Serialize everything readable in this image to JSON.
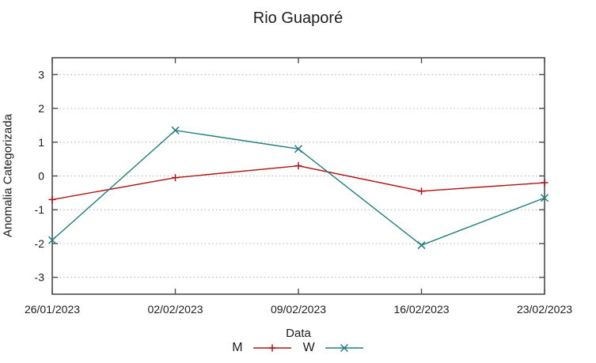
{
  "title": "Rio Guaporé",
  "colors": {
    "series_m": "#b01414",
    "series_w": "#1f7d7d",
    "grid": "#bdbdbd",
    "border": "#4d4d4d",
    "text": "#1c1c1c",
    "background": "#ffffff"
  },
  "chart_data": {
    "type": "line",
    "title": "Rio Guaporé",
    "xlabel": "Data",
    "ylabel": "Anomalia Categorizada",
    "categories": [
      "26/01/2023",
      "02/02/2023",
      "09/02/2023",
      "16/02/2023",
      "23/02/2023"
    ],
    "series": [
      {
        "name": "M",
        "color": "#b01414",
        "marker": "plus",
        "values": [
          -0.7,
          -0.05,
          0.3,
          -0.45,
          -0.2
        ]
      },
      {
        "name": "W",
        "color": "#1f7d7d",
        "marker": "x",
        "values": [
          -1.9,
          1.35,
          0.8,
          -2.05,
          -0.65
        ]
      }
    ],
    "yticks": [
      -3,
      -2,
      -1,
      0,
      1,
      2,
      3
    ],
    "ylim": [
      -3.5,
      3.5
    ],
    "grid": "horizontal-dotted",
    "legend_position": "bottom-center"
  }
}
